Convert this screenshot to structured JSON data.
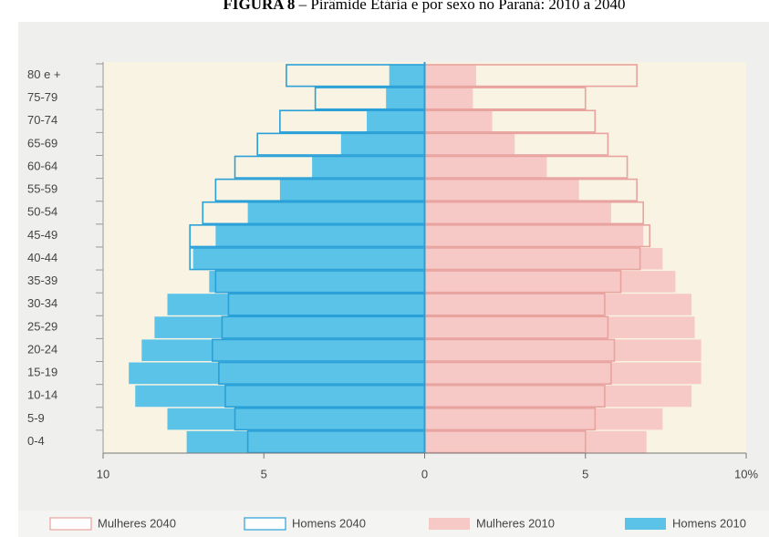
{
  "chart_data": {
    "type": "pyramid",
    "figure_label": "FIGURA 8",
    "title": "– Pirâmide Etária e por sexo no Paraná: 2010 a 2040",
    "categories": [
      "80 e +",
      "75-79",
      "70-74",
      "65-69",
      "60-64",
      "55-59",
      "50-54",
      "45-49",
      "40-44",
      "35-39",
      "30-34",
      "25-29",
      "20-24",
      "15-19",
      "10-14",
      "5-9",
      "0-4"
    ],
    "series": [
      {
        "name": "Mulheres 2040",
        "color": "#e8a39f",
        "style": "outline",
        "values": [
          6.6,
          5.0,
          5.3,
          5.7,
          6.3,
          6.6,
          6.8,
          7.0,
          6.7,
          6.1,
          5.6,
          5.7,
          5.9,
          5.8,
          5.6,
          5.3,
          5.0
        ]
      },
      {
        "name": "Homens 2040",
        "color": "#2aa0d8",
        "style": "outline",
        "values": [
          -4.3,
          -3.4,
          -4.5,
          -5.2,
          -5.9,
          -6.5,
          -6.9,
          -7.3,
          -7.3,
          -6.5,
          -6.1,
          -6.3,
          -6.6,
          -6.4,
          -6.2,
          -5.9,
          -5.5
        ]
      },
      {
        "name": "Mulheres 2010",
        "color": "#f7c9c6",
        "style": "fill",
        "values": [
          1.6,
          1.5,
          2.1,
          2.8,
          3.8,
          4.8,
          5.8,
          6.8,
          7.4,
          7.8,
          8.3,
          8.4,
          8.6,
          8.6,
          8.3,
          7.4,
          6.9
        ]
      },
      {
        "name": "Homens 2010",
        "color": "#5bc3e8",
        "style": "fill",
        "values": [
          -1.1,
          -1.2,
          -1.8,
          -2.6,
          -3.5,
          -4.5,
          -5.5,
          -6.5,
          -7.2,
          -6.7,
          -8.0,
          -8.4,
          -8.8,
          -9.2,
          -9.0,
          -8.0,
          -7.4
        ]
      }
    ],
    "xlim": [
      -10,
      10
    ],
    "xticks": [
      {
        "value": -10,
        "label": "10"
      },
      {
        "value": -5,
        "label": "5"
      },
      0,
      5,
      {
        "value": 10,
        "label": "10%"
      }
    ]
  }
}
